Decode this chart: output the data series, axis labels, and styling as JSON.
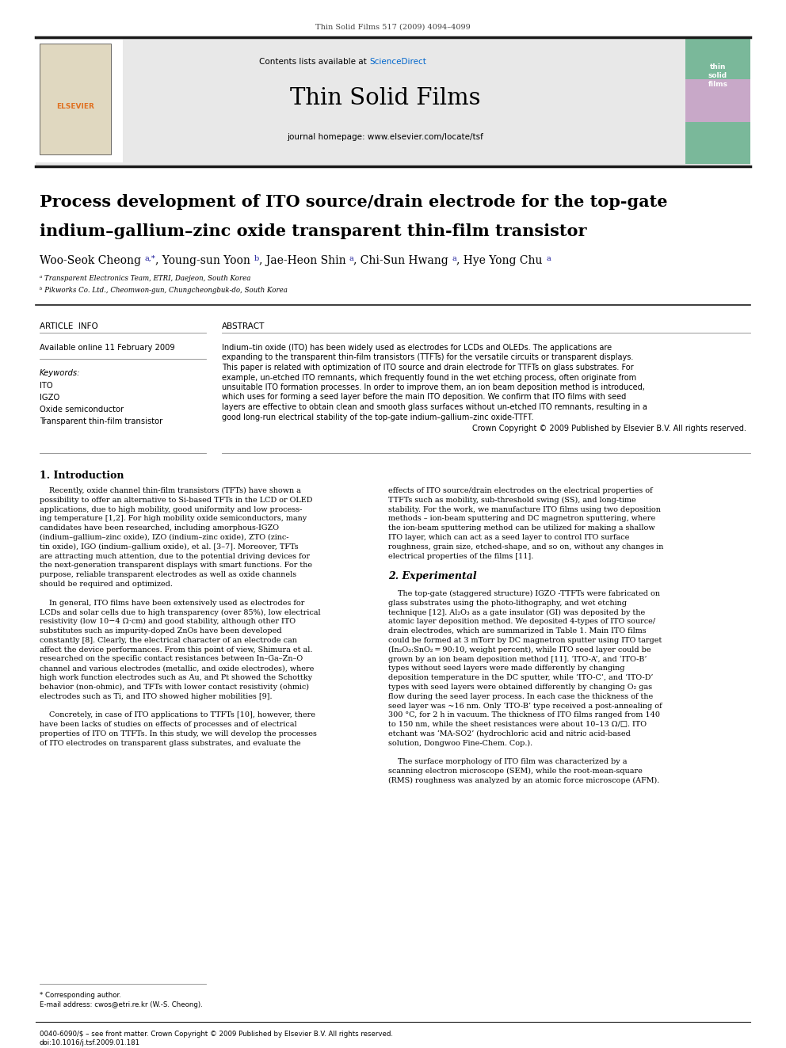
{
  "page_width": 9.92,
  "page_height": 13.23,
  "bg_color": "#ffffff",
  "header_journal": "Thin Solid Films 517 (2009) 4094–4099",
  "header_text_color": "#444444",
  "journal_header_bg": "#e8e8e8",
  "contents_line_prefix": "Contents lists available at ",
  "sciencedirect_text": "ScienceDirect",
  "sciencedirect_color": "#0066cc",
  "journal_name": "Thin Solid Films",
  "journal_url": "journal homepage: www.elsevier.com/locate/tsf",
  "title_line1": "Process development of ITO source/drain electrode for the top-gate",
  "title_line2": "indium–gallium–zinc oxide transparent thin-film transistor",
  "affil_a": "ᵃ Transparent Electronics Team, ETRI, Daejeon, South Korea",
  "affil_b": "ᵇ Pikworks Co. Ltd., Cheomwon-gun, Chungcheongbuk-do, South Korea",
  "article_info_header": "ARTICLE  INFO",
  "abstract_header": "ABSTRACT",
  "available_online": "Available online 11 February 2009",
  "keywords_header": "Keywords:",
  "keywords": [
    "ITO",
    "IGZO",
    "Oxide semiconductor",
    "Transparent thin-film transistor"
  ],
  "copyright_text": "Crown Copyright © 2009 Published by Elsevier B.V. All rights reserved.",
  "section1_header": "1. Introduction",
  "footnote_corresp": "* Corresponding author.",
  "footnote_email": "E-mail address: cwos@etri.re.kr (W.-S. Cheong).",
  "footer_issn": "0040-6090/$ – see front matter. Crown Copyright © 2009 Published by Elsevier B.V. All rights reserved.",
  "footer_doi": "doi:10.1016/j.tsf.2009.01.181",
  "text_color": "#000000",
  "thick_line_color": "#1a1a1a",
  "thin_line_color": "#888888",
  "cover_bg_top": "#7ab89a",
  "cover_bg_mid": "#c8a8c8",
  "cover_bg_bot": "#7ab89a",
  "elsevier_color": "#e07020",
  "abstract_lines": [
    "Indium–tin oxide (ITO) has been widely used as electrodes for LCDs and OLEDs. The applications are",
    "expanding to the transparent thin-film transistors (TTFTs) for the versatile circuits or transparent displays.",
    "This paper is related with optimization of ITO source and drain electrode for TTFTs on glass substrates. For",
    "example, un-etched ITO remnants, which frequently found in the wet etching process, often originate from",
    "unsuitable ITO formation processes. In order to improve them, an ion beam deposition method is introduced,",
    "which uses for forming a seed layer before the main ITO deposition. We confirm that ITO films with seed",
    "layers are effective to obtain clean and smooth glass surfaces without un-etched ITO remnants, resulting in a",
    "good long-run electrical stability of the top-gate indium–gallium–zinc oxide-TTFT."
  ],
  "col1_lines": [
    "    Recently, oxide channel thin-film transistors (TFTs) have shown a",
    "possibility to offer an alternative to Si-based TFTs in the LCD or OLED",
    "applications, due to high mobility, good uniformity and low process-",
    "ing temperature [1,2]. For high mobility oxide semiconductors, many",
    "candidates have been researched, including amorphous-IGZO",
    "(indium–gallium–zinc oxide), IZO (indium–zinc oxide), ZTO (zinc-",
    "tin oxide), IGO (indium–gallium oxide), et al. [3–7]. Moreover, TFTs",
    "are attracting much attention, due to the potential driving devices for",
    "the next-generation transparent displays with smart functions. For the",
    "purpose, reliable transparent electrodes as well as oxide channels",
    "should be required and optimized.",
    "",
    "    In general, ITO films have been extensively used as electrodes for",
    "LCDs and solar cells due to high transparency (over 85%), low electrical",
    "resistivity (low 10−4 Ω⋅cm) and good stability, although other ITO",
    "substitutes such as impurity-doped ZnOs have been developed",
    "constantly [8]. Clearly, the electrical character of an electrode can",
    "affect the device performances. From this point of view, Shimura et al.",
    "researched on the specific contact resistances between In–Ga–Zn–O",
    "channel and various electrodes (metallic, and oxide electrodes), where",
    "high work function electrodes such as Au, and Pt showed the Schottky",
    "behavior (non-ohmic), and TFTs with lower contact resistivity (ohmic)",
    "electrodes such as Ti, and ITO showed higher mobilities [9].",
    "",
    "    Concretely, in case of ITO applications to TTFTs [10], however, there",
    "have been lacks of studies on effects of processes and of electrical",
    "properties of ITO on TTFTs. In this study, we will develop the processes",
    "of ITO electrodes on transparent glass substrates, and evaluate the"
  ],
  "col2_lines": [
    "effects of ITO source/drain electrodes on the electrical properties of",
    "TTFTs such as mobility, sub-threshold swing (SS), and long-time",
    "stability. For the work, we manufacture ITO films using two deposition",
    "methods – ion-beam sputtering and DC magnetron sputtering, where",
    "the ion-beam sputtering method can be utilized for making a shallow",
    "ITO layer, which can act as a seed layer to control ITO surface",
    "roughness, grain size, etched-shape, and so on, without any changes in",
    "electrical properties of the films [11].",
    "",
    "2. Experimental",
    "",
    "    The top-gate (staggered structure) IGZO -TTFTs were fabricated on",
    "glass substrates using the photo-lithography, and wet etching",
    "technique [12]. Al₂O₃ as a gate insulator (GI) was deposited by the",
    "atomic layer deposition method. We deposited 4-types of ITO source/",
    "drain electrodes, which are summarized in Table 1. Main ITO films",
    "could be formed at 3 mTorr by DC magnetron sputter using ITO target",
    "(In₂O₃:SnO₂ = 90:10, weight percent), while ITO seed layer could be",
    "grown by an ion beam deposition method [11]. ‘ITO-A’, and ‘ITO-B’",
    "types without seed layers were made differently by changing",
    "deposition temperature in the DC sputter, while ‘ITO-C’, and ‘ITO-D’",
    "types with seed layers were obtained differently by changing O₂ gas",
    "flow during the seed layer process. In each case the thickness of the",
    "seed layer was ~16 nm. Only ‘ITO-B’ type received a post-annealing of",
    "300 °C, for 2 h in vacuum. The thickness of ITO films ranged from 140",
    "to 150 nm, while the sheet resistances were about 10–13 Ω/□. ITO",
    "etchant was ‘MA-SO2’ (hydrochloric acid and nitric acid-based",
    "solution, Dongwoo Fine-Chem. Cop.).",
    "",
    "    The surface morphology of ITO film was characterized by a",
    "scanning electron microscope (SEM), while the root-mean-square",
    "(RMS) roughness was analyzed by an atomic force microscope (AFM)."
  ]
}
